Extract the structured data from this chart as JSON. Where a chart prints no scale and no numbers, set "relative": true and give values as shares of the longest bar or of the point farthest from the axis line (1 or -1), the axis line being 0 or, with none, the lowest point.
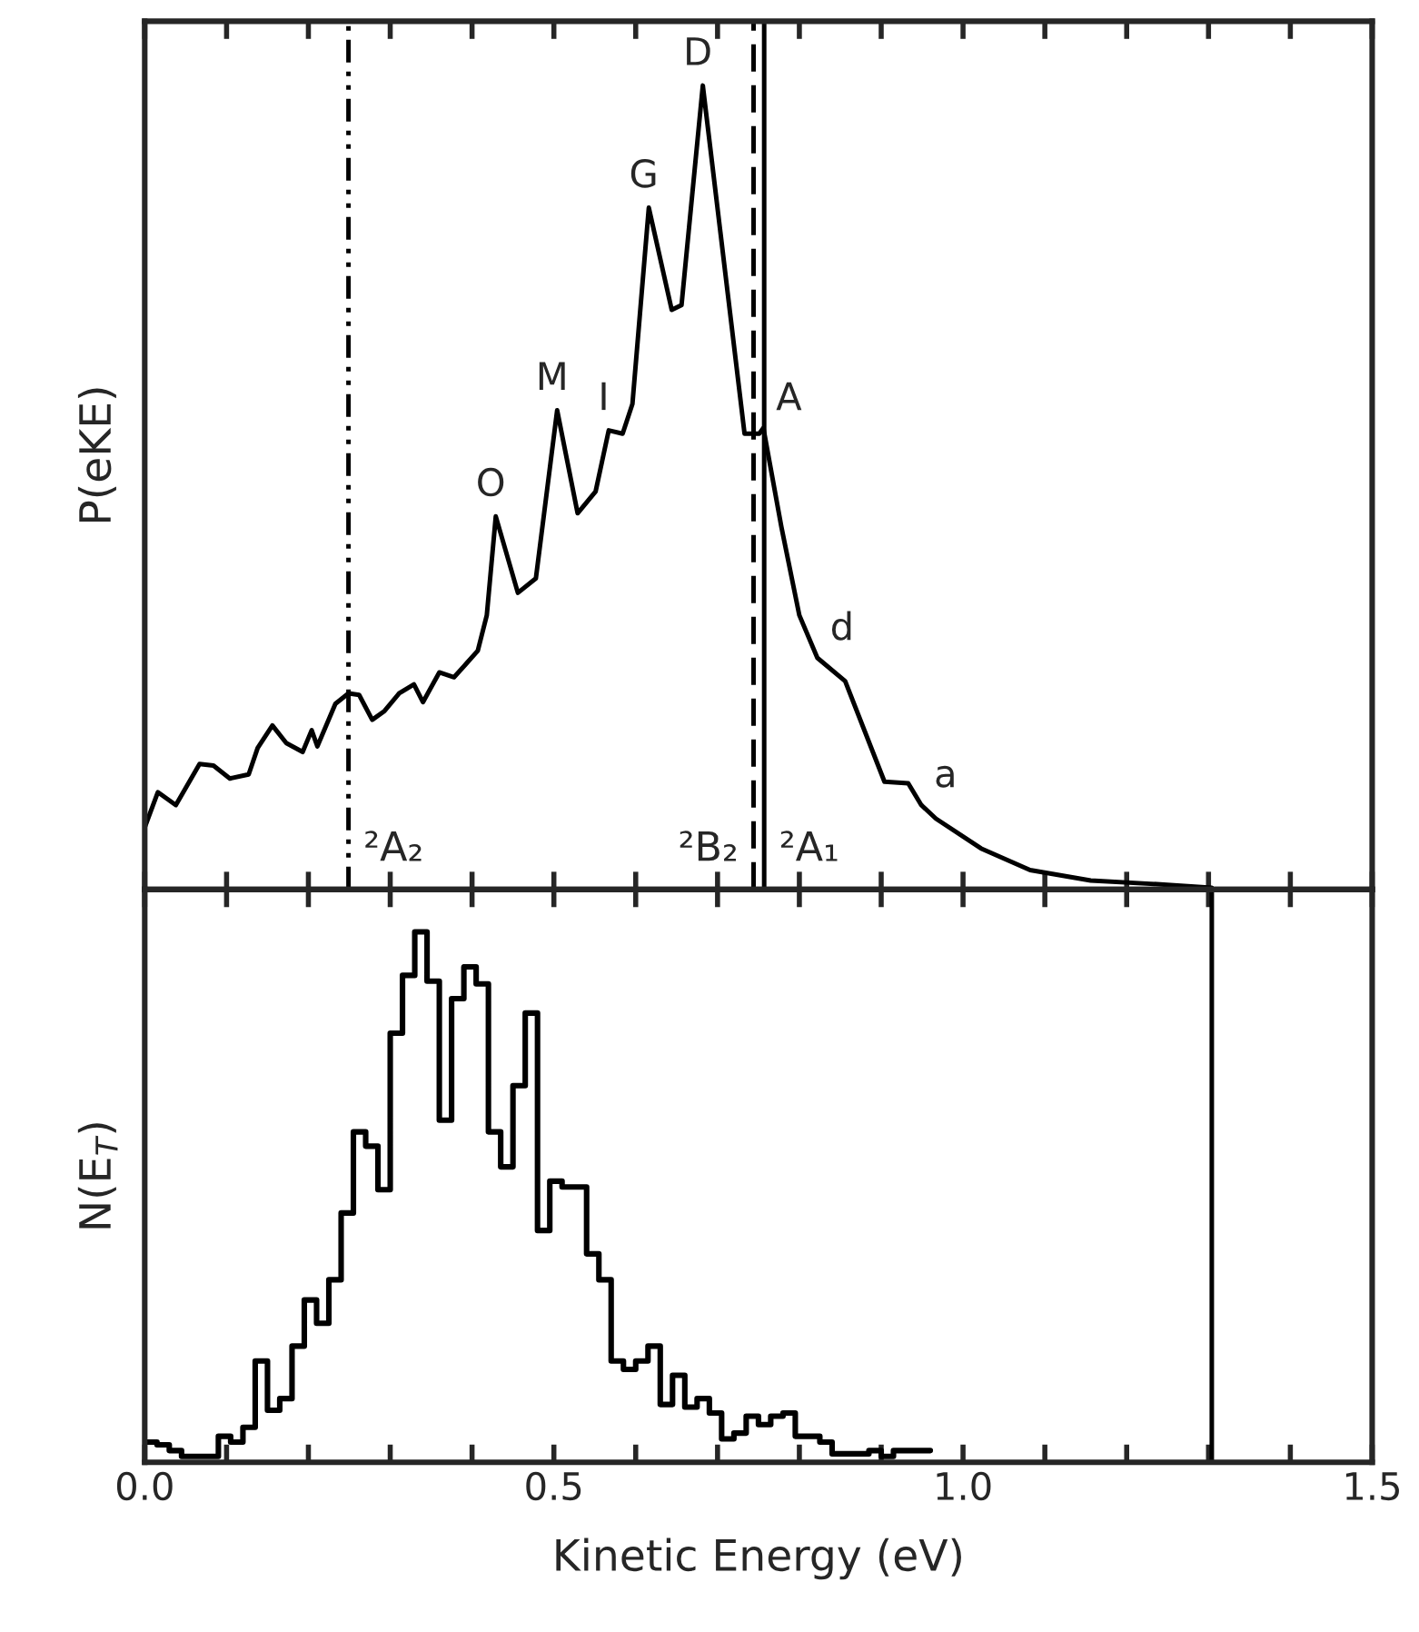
{
  "chart_data": [
    {
      "type": "line",
      "relative": true,
      "ylabel": "P(eKE)",
      "xlim": [
        0,
        1.5
      ],
      "xticks": [
        0,
        {
          "value": 0.1,
          "label": null
        },
        {
          "value": 0.2,
          "label": null
        },
        {
          "value": 0.3,
          "label": null
        },
        {
          "value": 0.4,
          "label": null
        },
        0.5,
        {
          "value": 0.6,
          "label": null
        },
        {
          "value": 0.7,
          "label": null
        },
        {
          "value": 0.8,
          "label": null
        },
        {
          "value": 0.9,
          "label": null
        },
        1.0,
        {
          "value": 1.1,
          "label": null
        },
        {
          "value": 1.2,
          "label": null
        },
        {
          "value": 1.3,
          "label": null
        },
        {
          "value": 1.4,
          "label": null
        },
        1.5
      ],
      "tick_labels": false,
      "grid": false,
      "legend": false,
      "series": [
        {
          "color": "#000000",
          "line_style": "solid",
          "x": [
            0.0,
            0.016,
            0.038,
            0.067,
            0.084,
            0.104,
            0.127,
            0.138,
            0.156,
            0.173,
            0.193,
            0.204,
            0.211,
            0.233,
            0.249,
            0.262,
            0.278,
            0.293,
            0.311,
            0.329,
            0.34,
            0.36,
            0.378,
            0.393,
            0.407,
            0.418,
            0.429,
            0.456,
            0.478,
            0.504,
            0.529,
            0.551,
            0.567,
            0.584,
            0.596,
            0.616,
            0.644,
            0.656,
            0.682,
            0.733,
            0.751,
            0.756,
            0.778,
            0.8,
            0.822,
            0.856,
            0.904,
            0.933,
            0.949,
            0.967,
            1.022,
            1.082,
            1.156,
            1.229,
            1.304
          ],
          "values": [
            0.077,
            0.121,
            0.105,
            0.156,
            0.154,
            0.138,
            0.143,
            0.176,
            0.204,
            0.182,
            0.171,
            0.198,
            0.178,
            0.231,
            0.244,
            0.242,
            0.211,
            0.222,
            0.244,
            0.255,
            0.233,
            0.27,
            0.264,
            0.281,
            0.297,
            0.341,
            0.464,
            0.369,
            0.387,
            0.596,
            0.468,
            0.495,
            0.571,
            0.567,
            0.604,
            0.848,
            0.721,
            0.727,
            1.0,
            0.567,
            0.567,
            0.574,
            0.451,
            0.341,
            0.288,
            0.259,
            0.134,
            0.132,
            0.105,
            0.088,
            0.051,
            0.024,
            0.011,
            0.007,
            0.002
          ]
        }
      ],
      "ref_lines": [
        {
          "axis": "x",
          "value": 0.249,
          "label": "²A₂",
          "color": "#000000",
          "line_style": "dashdot"
        },
        {
          "axis": "x",
          "value": 0.744,
          "label": "²B₂",
          "color": "#000000",
          "line_style": "dashed"
        },
        {
          "axis": "x",
          "value": 0.757,
          "label": "²A₁",
          "color": "#000000",
          "line_style": "solid"
        }
      ],
      "annotations": [
        {
          "text": "O",
          "x": 0.429,
          "y": 0.464
        },
        {
          "text": "M",
          "x": 0.504,
          "y": 0.596
        },
        {
          "text": "I",
          "x": 0.567,
          "y": 0.571
        },
        {
          "text": "G",
          "x": 0.616,
          "y": 0.848
        },
        {
          "text": "D",
          "x": 0.682,
          "y": 1.0
        },
        {
          "text": "A",
          "x": 0.756,
          "y": 0.574
        },
        {
          "text": "d",
          "x": 0.822,
          "y": 0.288
        },
        {
          "text": "a",
          "x": 0.949,
          "y": 0.105
        }
      ]
    },
    {
      "type": "step",
      "relative": true,
      "ylabel": "N(E$_{T}$)",
      "xlabel": "Kinetic Energy (eV)",
      "xlim": [
        0,
        1.5
      ],
      "xticks": [
        {
          "value": 0,
          "label": "0.0"
        },
        {
          "value": 0.1,
          "label": null
        },
        {
          "value": 0.2,
          "label": null
        },
        {
          "value": 0.3,
          "label": null
        },
        {
          "value": 0.4,
          "label": null
        },
        {
          "value": 0.5,
          "label": "0.5"
        },
        {
          "value": 0.6,
          "label": null
        },
        {
          "value": 0.7,
          "label": null
        },
        {
          "value": 0.8,
          "label": null
        },
        {
          "value": 0.9,
          "label": null
        },
        {
          "value": 1,
          "label": "1.0"
        },
        {
          "value": 1.1,
          "label": null
        },
        {
          "value": 1.2,
          "label": null
        },
        {
          "value": 1.3,
          "label": null
        },
        {
          "value": 1.4,
          "label": null
        },
        {
          "value": 1.5,
          "label": "1.5"
        }
      ],
      "tick_labels": "x",
      "grid": false,
      "legend": false,
      "color": "#000000",
      "x": [
        0,
        0.015,
        0.03,
        0.045,
        0.06,
        0.075,
        0.09,
        0.105,
        0.12,
        0.135,
        0.15,
        0.165,
        0.18,
        0.195,
        0.21,
        0.225,
        0.24,
        0.255,
        0.27,
        0.285,
        0.3,
        0.315,
        0.33,
        0.345,
        0.36,
        0.375,
        0.39,
        0.405,
        0.42,
        0.435,
        0.45,
        0.465,
        0.48,
        0.495,
        0.51,
        0.525,
        0.54,
        0.555,
        0.57,
        0.585,
        0.6,
        0.615,
        0.63,
        0.645,
        0.66,
        0.675,
        0.69,
        0.705,
        0.72,
        0.735,
        0.75,
        0.765,
        0.78,
        0.795,
        0.81,
        0.825,
        0.84,
        0.855,
        0.87,
        0.885,
        0.9,
        0.915,
        0.93,
        0.945,
        0.96
      ],
      "values": [
        0.038,
        0.033,
        0.022,
        0.011,
        0.011,
        0.011,
        0.049,
        0.038,
        0.066,
        0.191,
        0.098,
        0.12,
        0.219,
        0.306,
        0.262,
        0.344,
        0.47,
        0.623,
        0.596,
        0.514,
        0.809,
        0.918,
        1.0,
        0.907,
        0.645,
        0.874,
        0.934,
        0.902,
        0.623,
        0.557,
        0.71,
        0.847,
        0.437,
        0.53,
        0.519,
        0.519,
        0.393,
        0.344,
        0.191,
        0.175,
        0.191,
        0.219,
        0.109,
        0.164,
        0.104,
        0.12,
        0.093,
        0.044,
        0.055,
        0.087,
        0.071,
        0.087,
        0.093,
        0.049,
        0.049,
        0.038,
        0.016,
        0.016,
        0.016,
        0.022,
        0.011,
        0.022,
        0.022,
        0.022,
        0.022
      ],
      "ref_lines": [
        {
          "axis": "x",
          "value": 1.304,
          "color": "#000000",
          "line_style": "solid"
        }
      ]
    }
  ]
}
